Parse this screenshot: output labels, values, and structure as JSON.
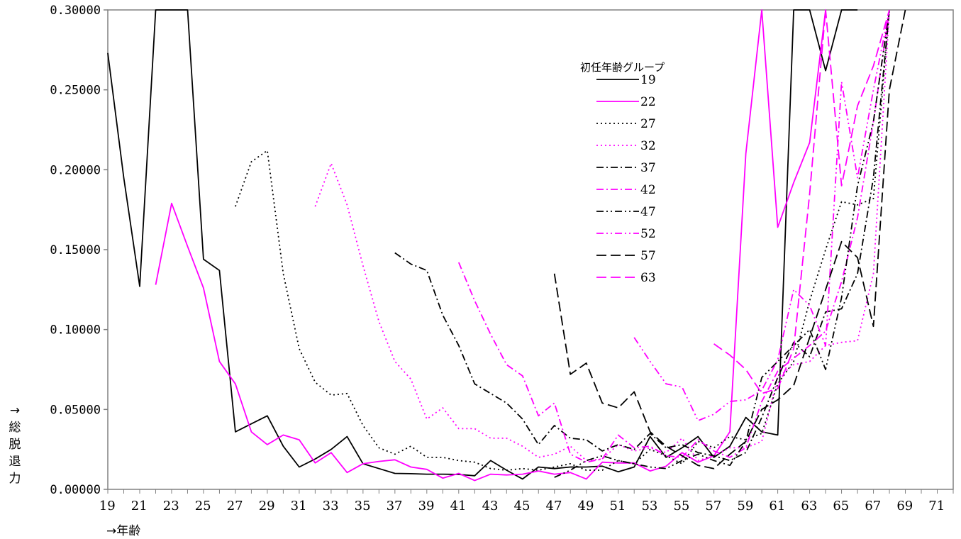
{
  "chart_data": {
    "type": "line",
    "title": "",
    "xlabel": "→年齢",
    "ylabel": "→総脱退力",
    "xlim": [
      19,
      72
    ],
    "ylim": [
      0,
      0.3
    ],
    "y_ticks": [
      "0.00000",
      "0.05000",
      "0.10000",
      "0.15000",
      "0.20000",
      "0.25000",
      "0.30000"
    ],
    "x_ticks": [
      "19",
      "21",
      "23",
      "25",
      "27",
      "29",
      "31",
      "33",
      "35",
      "37",
      "39",
      "41",
      "43",
      "45",
      "47",
      "49",
      "51",
      "53",
      "55",
      "57",
      "59",
      "61",
      "63",
      "65",
      "67",
      "69",
      "71"
    ],
    "grid": false,
    "legend_title": "初任年齢グループ",
    "legend_position": "upper-right",
    "series": [
      {
        "name": "19",
        "color": "#000000",
        "dash": "",
        "x_start": 19,
        "values": [
          0.273,
          0.195,
          0.127,
          0.335,
          0.36,
          0.32,
          0.144,
          0.137,
          0.036,
          0.041,
          0.046,
          0.027,
          0.014,
          0.019,
          0.025,
          0.033,
          0.016,
          0.013,
          0.01,
          0.0098,
          0.0095,
          0.0095,
          0.0093,
          0.0085,
          0.018,
          0.012,
          0.0065,
          0.014,
          0.013,
          0.014,
          0.014,
          0.0145,
          0.011,
          0.014,
          0.033,
          0.02,
          0.026,
          0.033,
          0.02,
          0.027,
          0.045,
          0.036,
          0.034,
          0.36,
          0.3,
          0.262,
          0.32,
          0.36
        ]
      },
      {
        "name": "22",
        "color": "#ff00ff",
        "dash": "",
        "x_start": 22,
        "values": [
          0.128,
          0.179,
          0.152,
          0.126,
          0.08,
          0.066,
          0.036,
          0.028,
          0.034,
          0.031,
          0.0165,
          0.023,
          0.0105,
          0.016,
          0.0175,
          0.0185,
          0.014,
          0.0125,
          0.007,
          0.01,
          0.0055,
          0.0095,
          0.009,
          0.0095,
          0.0115,
          0.0095,
          0.0105,
          0.0065,
          0.017,
          0.0165,
          0.0165,
          0.0115,
          0.0145,
          0.023,
          0.017,
          0.021,
          0.036,
          0.21,
          0.31,
          0.164,
          0.192,
          0.217,
          0.33
        ]
      },
      {
        "name": "27",
        "color": "#000000",
        "dash": "2,4",
        "x_start": 27,
        "values": [
          0.177,
          0.205,
          0.212,
          0.135,
          0.088,
          0.067,
          0.059,
          0.06,
          0.04,
          0.026,
          0.022,
          0.027,
          0.02,
          0.02,
          0.018,
          0.017,
          0.013,
          0.012,
          0.013,
          0.012,
          0.014,
          0.016,
          0.012,
          0.012,
          0.018,
          0.016,
          0.025,
          0.021,
          0.016,
          0.03,
          0.026,
          0.033,
          0.031,
          0.035,
          0.066,
          0.08,
          0.118,
          0.15,
          0.18,
          0.178,
          0.182,
          0.3
        ]
      },
      {
        "name": "32",
        "color": "#ff00ff",
        "dash": "2,4",
        "x_start": 32,
        "values": [
          0.177,
          0.204,
          0.178,
          0.14,
          0.105,
          0.08,
          0.069,
          0.044,
          0.051,
          0.038,
          0.038,
          0.032,
          0.032,
          0.027,
          0.02,
          0.022,
          0.027,
          0.018,
          0.019,
          0.028,
          0.024,
          0.026,
          0.023,
          0.032,
          0.018,
          0.021,
          0.026,
          0.026,
          0.03,
          0.07,
          0.078,
          0.08,
          0.09,
          0.092,
          0.093,
          0.135,
          0.3
        ]
      },
      {
        "name": "37",
        "color": "#000000",
        "dash": "10,4,2,4",
        "x_start": 37,
        "values": [
          0.148,
          0.141,
          0.137,
          0.109,
          0.09,
          0.066,
          0.06,
          0.054,
          0.044,
          0.028,
          0.04,
          0.032,
          0.031,
          0.024,
          0.028,
          0.025,
          0.035,
          0.026,
          0.028,
          0.023,
          0.021,
          0.018,
          0.023,
          0.045,
          0.07,
          0.092,
          0.083,
          0.111,
          0.113,
          0.135,
          0.195,
          0.3
        ]
      },
      {
        "name": "42",
        "color": "#ff00ff",
        "dash": "10,4,2,4",
        "x_start": 41,
        "values": [
          0.142,
          0.118,
          0.097,
          0.078,
          0.071,
          0.046,
          0.054,
          0.022,
          0.017,
          0.019,
          0.034,
          0.026,
          0.027,
          0.021,
          0.02,
          0.031,
          0.024,
          0.02,
          0.026,
          0.055,
          0.074,
          0.082,
          0.09,
          0.099,
          0.13,
          0.17,
          0.23,
          0.3
        ]
      },
      {
        "name": "47",
        "color": "#000000",
        "dash": "10,4,2,4,2,4",
        "x_start": 47,
        "values": [
          0.0075,
          0.012,
          0.018,
          0.021,
          0.018,
          0.016,
          0.014,
          0.013,
          0.018,
          0.022,
          0.018,
          0.015,
          0.03,
          0.07,
          0.08,
          0.09,
          0.1,
          0.075,
          0.12,
          0.19,
          0.23,
          0.3
        ]
      },
      {
        "name": "52",
        "color": "#ff00ff",
        "dash": "10,4,2,4,2,4",
        "x_start": 52,
        "values": [
          0.095,
          0.08,
          0.066,
          0.064,
          0.043,
          0.047,
          0.055,
          0.056,
          0.062,
          0.081,
          0.125,
          0.115,
          0.09,
          0.255,
          0.195,
          0.25,
          0.3
        ]
      },
      {
        "name": "57",
        "color": "#000000",
        "dash": "14,6",
        "x_start": 47,
        "values": [
          0.135,
          0.072,
          0.079,
          0.054,
          0.051,
          0.061,
          0.036,
          0.027,
          0.021,
          0.015,
          0.013,
          0.022,
          0.03,
          0.05,
          0.056,
          0.065,
          0.095,
          0.125,
          0.155,
          0.145,
          0.102,
          0.25,
          0.3
        ]
      },
      {
        "name": "63",
        "color": "#ff00ff",
        "dash": "14,6",
        "x_start": 57,
        "values": [
          0.091,
          0.084,
          0.075,
          0.06,
          0.063,
          0.088,
          0.185,
          0.31,
          0.19,
          0.24,
          0.265,
          0.3
        ]
      }
    ]
  }
}
